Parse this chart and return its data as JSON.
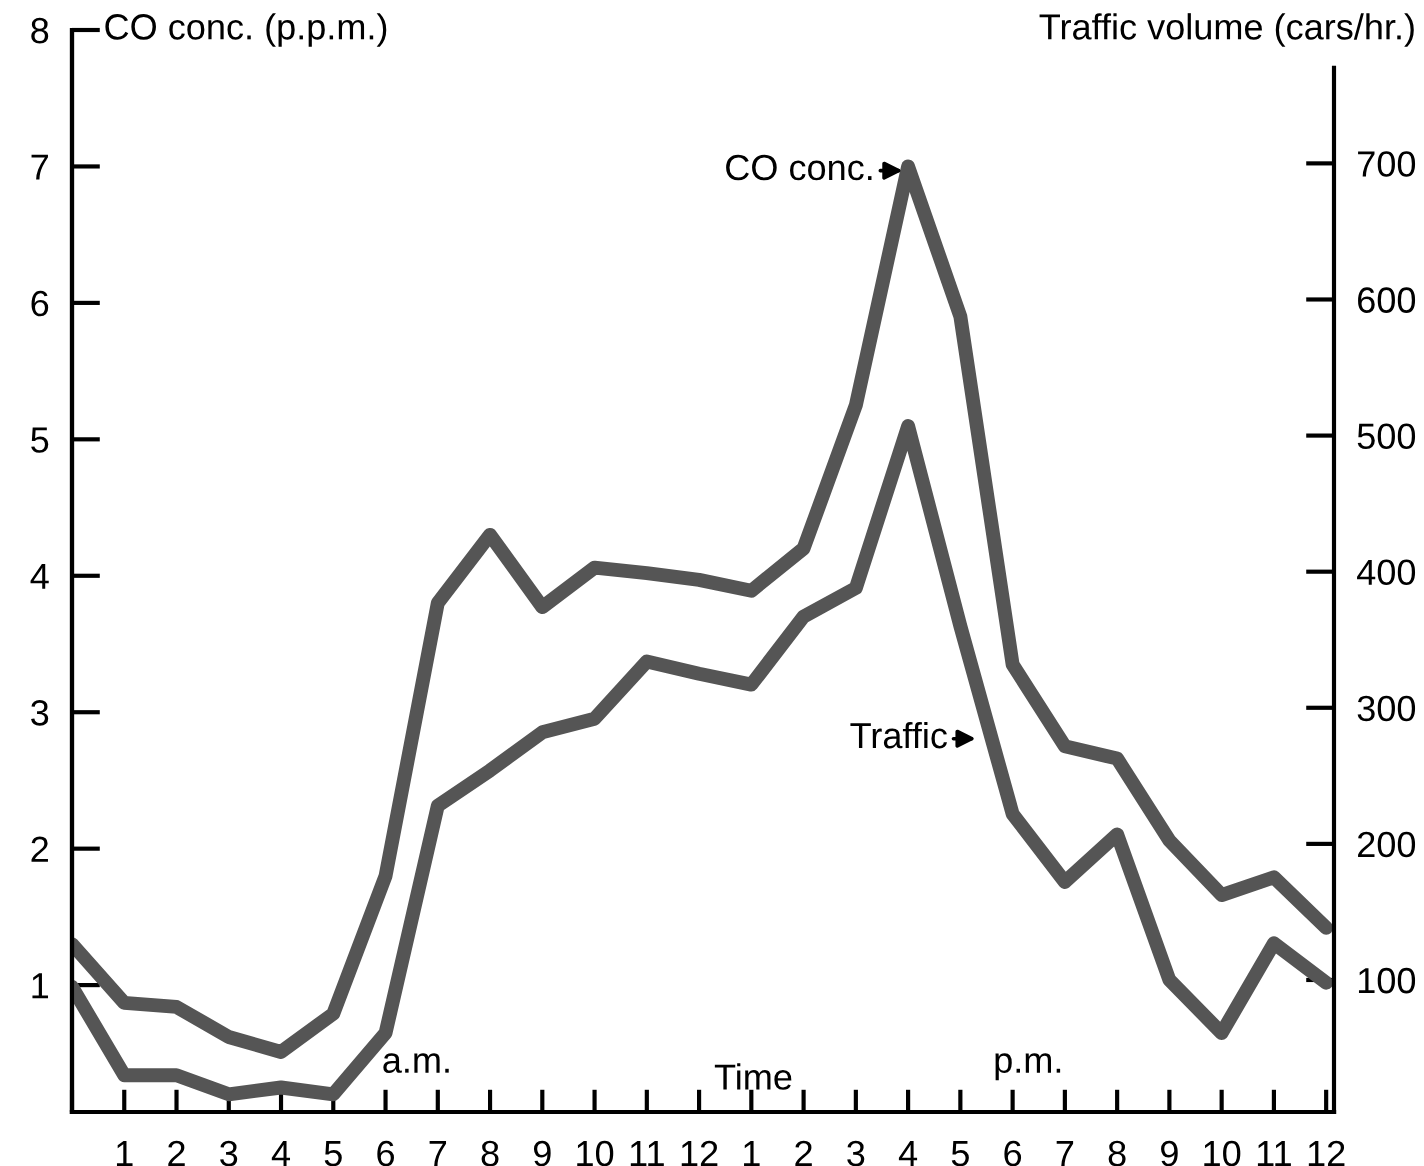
{
  "chart_data": {
    "type": "line",
    "ylabel": "CO conc. (p.p.m.)",
    "y2label": "Traffic volume (cars/hr.)",
    "xlabel": "Time",
    "categories": [
      null,
      "1",
      "2",
      "3",
      "4",
      "5",
      "6",
      "7",
      "8",
      "9",
      "10",
      "11",
      "12",
      "1",
      "2",
      "3",
      "4",
      "5",
      "6",
      "7",
      "8",
      "9",
      "10",
      "11",
      "12"
    ],
    "ylim": [
      0.07,
      8
    ],
    "yticks": [
      1,
      2,
      3,
      4,
      5,
      6,
      7,
      8
    ],
    "y2lim": [
      3,
      798
    ],
    "y2ticks": [
      100,
      200,
      300,
      400,
      500,
      600,
      700
    ],
    "series": [
      {
        "color": "#555555",
        "values": [
          1.3,
          0.87,
          0.84,
          0.62,
          0.51,
          0.79,
          1.8,
          3.8,
          4.3,
          3.77,
          4.06,
          4.02,
          3.97,
          3.89,
          4.2,
          5.25,
          7.0,
          5.9,
          3.35,
          2.75,
          2.66,
          2.06,
          1.66,
          1.79,
          1.42
        ]
      },
      {
        "color": "#555555",
        "axis": "y2",
        "values": [
          95,
          30,
          30,
          16,
          21,
          16,
          61,
          228,
          254,
          282,
          292,
          334,
          325,
          317,
          367,
          388,
          507,
          360,
          222,
          172,
          207,
          100,
          61,
          127,
          98
        ]
      }
    ],
    "annotations": [
      "CO conc.",
      "Traffic",
      "a.m.",
      "p.m."
    ],
    "grid": false,
    "legend": false,
    "marker": "none",
    "line_style": "solid"
  }
}
